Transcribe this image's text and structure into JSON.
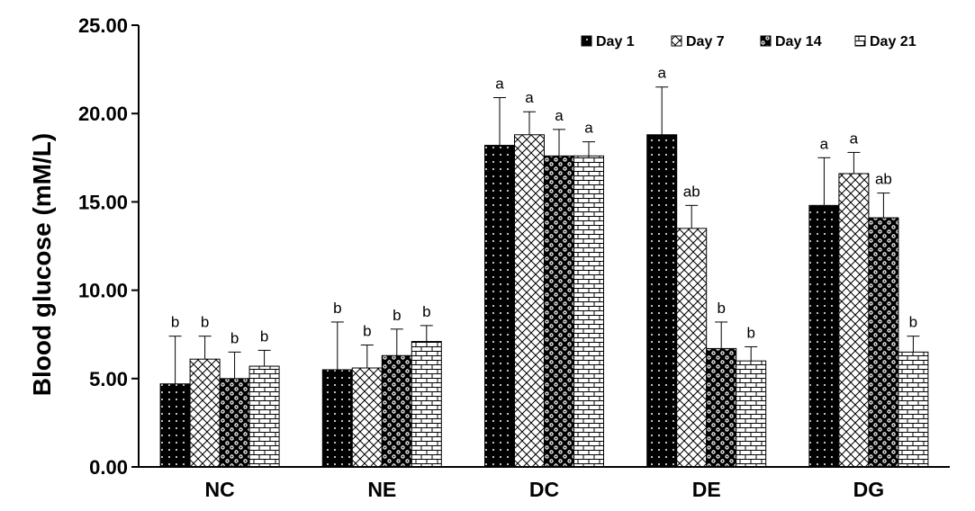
{
  "chart_data": {
    "type": "bar",
    "title": "",
    "xlabel": "",
    "ylabel": "Blood glucose (mM/L)",
    "ylim": [
      0,
      25
    ],
    "yticks": [
      0,
      5,
      10,
      15,
      20,
      25
    ],
    "ytick_labels": [
      "0.00",
      "5.00",
      "10.00",
      "15.00",
      "20.00",
      "25.00"
    ],
    "categories": [
      "NC",
      "NE",
      "DC",
      "DE",
      "DG"
    ],
    "legend_position": "top-right",
    "series": [
      {
        "name": "Day 1",
        "pattern": "dots-on-black",
        "values": [
          4.7,
          5.5,
          18.2,
          18.8,
          14.8
        ],
        "errors": [
          2.7,
          2.7,
          2.7,
          2.7,
          2.7
        ],
        "labels": [
          "b",
          "b",
          "a",
          "a",
          "a"
        ]
      },
      {
        "name": "Day 7",
        "pattern": "crosshatch",
        "values": [
          6.1,
          5.6,
          18.8,
          13.5,
          16.6
        ],
        "errors": [
          1.3,
          1.3,
          1.3,
          1.3,
          1.2
        ],
        "labels": [
          "b",
          "b",
          "a",
          "ab",
          "a"
        ]
      },
      {
        "name": "Day 14",
        "pattern": "checker-circles",
        "values": [
          5.0,
          6.3,
          17.6,
          6.7,
          14.1
        ],
        "errors": [
          1.5,
          1.5,
          1.5,
          1.5,
          1.4
        ],
        "labels": [
          "b",
          "b",
          "a",
          "b",
          "ab"
        ]
      },
      {
        "name": "Day 21",
        "pattern": "brick",
        "values": [
          5.7,
          7.1,
          17.6,
          6.0,
          6.5
        ],
        "errors": [
          0.9,
          0.9,
          0.8,
          0.8,
          0.9
        ],
        "labels": [
          "b",
          "b",
          "a",
          "b",
          "b"
        ]
      }
    ]
  }
}
